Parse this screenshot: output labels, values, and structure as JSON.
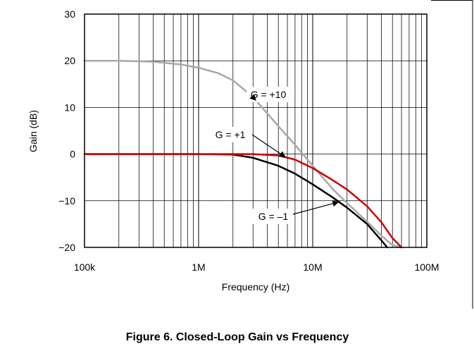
{
  "chart_data": {
    "type": "line",
    "title": "Figure 6. Closed-Loop Gain vs Frequency",
    "xlabel": "Frequency (Hz)",
    "ylabel": "Gain (dB)",
    "xscale": "log",
    "xlim": [
      100000,
      100000000
    ],
    "ylim": [
      -20,
      30
    ],
    "xticks": [
      100000,
      1000000,
      10000000,
      100000000
    ],
    "xtick_labels": [
      "100k",
      "1M",
      "10M",
      "100M"
    ],
    "yticks": [
      -20,
      -10,
      0,
      10,
      20,
      30
    ],
    "ytick_labels": [
      "−20",
      "−10",
      "0",
      "10",
      "20",
      "30"
    ],
    "grid": true,
    "series": [
      {
        "name": "G = +10",
        "color": "#a8a8a8",
        "x": [
          100000,
          200000,
          400000,
          700000,
          1000000,
          1500000,
          2000000,
          3000000,
          5000000,
          7000000,
          10000000,
          15000000,
          20000000,
          30000000,
          40000000,
          50000000,
          60000000
        ],
        "y": [
          20,
          20,
          19.8,
          19.2,
          18.5,
          17.3,
          15.8,
          12.2,
          6,
          2,
          -2.5,
          -7.5,
          -10.5,
          -14.5,
          -17.5,
          -19.5,
          -20
        ]
      },
      {
        "name": "G = +1",
        "color": "#cc0000",
        "x": [
          100000,
          1000000,
          2000000,
          3000000,
          5000000,
          7000000,
          10000000,
          15000000,
          20000000,
          30000000,
          40000000,
          50000000,
          60000000
        ],
        "y": [
          0,
          0,
          0,
          0,
          -0.3,
          -1.2,
          -3,
          -5.6,
          -7.6,
          -11.2,
          -14.6,
          -18,
          -20
        ]
      },
      {
        "name": "G = –1",
        "color": "#000000",
        "x": [
          100000,
          1000000,
          2000000,
          3000000,
          5000000,
          7000000,
          10000000,
          15000000,
          20000000,
          30000000,
          40000000,
          45000000
        ],
        "y": [
          0,
          0,
          -0.1,
          -0.8,
          -2.5,
          -4.2,
          -6.5,
          -9.3,
          -11.5,
          -15,
          -18.5,
          -20
        ]
      }
    ],
    "annotations": [
      {
        "text": "G = +10",
        "series": 0
      },
      {
        "text": "G = +1",
        "series": 1
      },
      {
        "text": "G = –1",
        "series": 2
      }
    ]
  }
}
